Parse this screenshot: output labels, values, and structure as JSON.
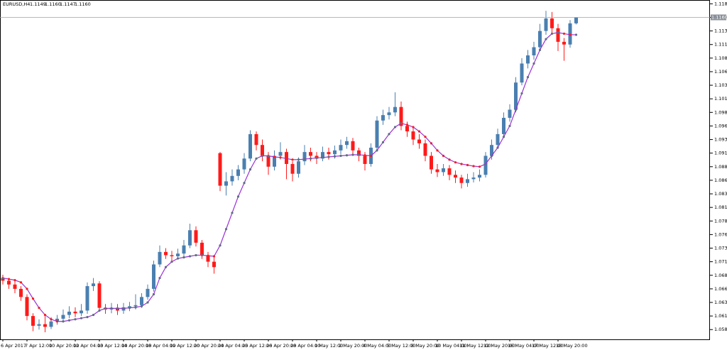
{
  "chart_data": {
    "type": "candlestick",
    "title": "EURUSD,H4",
    "header_values": [
      "1.1149",
      "1.1160",
      "1.1147",
      "1.1160"
    ],
    "current_price_label": "1.1160",
    "up_color": "#4a7fb0",
    "down_color": "#ff1a1a",
    "categories": [
      "6 Apr 2017",
      null,
      null,
      null,
      "7 Apr 12:00",
      null,
      null,
      null,
      "10 Apr 20:00",
      null,
      null,
      null,
      "12 Apr 04:00",
      null,
      null,
      null,
      "13 Apr 12:00",
      null,
      null,
      null,
      "14 Apr 20:00",
      null,
      null,
      null,
      "18 Apr 04:00",
      null,
      null,
      null,
      "19 Apr 12:00",
      null,
      null,
      null,
      "20 Apr 20:00",
      null,
      null,
      null,
      "24 Apr 04:00",
      null,
      null,
      null,
      "25 Apr 12:00",
      null,
      null,
      null,
      "26 Apr 20:00",
      null,
      null,
      null,
      "28 Apr 04:00",
      null,
      null,
      null,
      "1 May 12:00",
      null,
      null,
      null,
      "2 May 20:00",
      null,
      null,
      null,
      "4 May 04:00",
      null,
      null,
      null,
      "5 May 12:00",
      null,
      null,
      null,
      "8 May 20:00",
      null,
      null,
      null,
      "10 May 04:00",
      null,
      null,
      null,
      "11 May 12:00",
      null,
      null,
      null,
      "12 May 20:00",
      null,
      null,
      null,
      "16 May 04:00",
      null,
      null,
      null,
      "17 May 12:00",
      null,
      null,
      null,
      "18 May 20:00",
      null,
      null,
      null
    ],
    "open": [
      1.068,
      1.0675,
      1.0668,
      1.066,
      1.0645,
      1.061,
      1.0592,
      1.0595,
      1.059,
      1.06,
      1.0605,
      1.0612,
      1.0618,
      1.0615,
      1.062,
      1.0665,
      1.067,
      1.0625,
      1.0622,
      1.0625,
      1.062,
      1.0626,
      1.0628,
      1.063,
      1.0645,
      1.066,
      1.0705,
      1.0728,
      1.0722,
      1.072,
      1.0725,
      1.074,
      1.0768,
      1.0745,
      1.0722,
      1.071,
      1.091,
      1.085,
      1.0858,
      1.0868,
      1.088,
      1.09,
      1.0945,
      1.0925,
      1.0905,
      1.0885,
      1.0905,
      1.0912,
      1.089,
      1.0872,
      1.0895,
      1.0912,
      1.0905,
      1.09,
      1.0912,
      1.0908,
      1.0915,
      1.0925,
      1.0932,
      1.0915,
      1.0905,
      1.089,
      1.092,
      1.097,
      1.098,
      1.0985,
      1.0995,
      1.096,
      1.095,
      1.0935,
      1.0928,
      1.0905,
      1.088,
      1.0875,
      1.0882,
      1.087,
      1.0865,
      1.0855,
      1.0862,
      1.0865,
      1.087,
      1.0905,
      1.0925,
      1.0945,
      1.0975,
      1.099,
      1.104,
      1.1075,
      1.109,
      1.1105,
      1.1135,
      1.1158,
      1.114,
      1.1115,
      1.111,
      1.1149
    ],
    "high": [
      1.0686,
      1.068,
      1.0674,
      1.0665,
      1.065,
      1.0615,
      1.0604,
      1.061,
      1.0608,
      1.0612,
      1.0622,
      1.0628,
      1.0626,
      1.0632,
      1.0672,
      1.068,
      1.0674,
      1.0632,
      1.0634,
      1.0632,
      1.0634,
      1.0636,
      1.065,
      1.0652,
      1.0668,
      1.0712,
      1.074,
      1.0735,
      1.073,
      1.0734,
      1.075,
      1.078,
      1.0775,
      1.075,
      1.0728,
      1.072,
      1.0912,
      1.0875,
      1.088,
      1.0888,
      1.091,
      1.0952,
      1.095,
      1.0935,
      1.0912,
      1.0915,
      1.093,
      1.0918,
      1.0895,
      1.0902,
      1.0925,
      1.092,
      1.0912,
      1.0922,
      1.092,
      1.0924,
      1.0935,
      1.094,
      1.0938,
      1.092,
      1.0912,
      1.0928,
      1.0978,
      1.099,
      1.0995,
      1.1022,
      1.1005,
      1.0968,
      1.0958,
      1.0945,
      1.0935,
      1.0912,
      1.089,
      1.089,
      1.0888,
      1.0878,
      1.087,
      1.0872,
      1.0875,
      1.088,
      1.0912,
      1.0935,
      1.0955,
      1.0985,
      1.1,
      1.105,
      1.1085,
      1.11,
      1.1115,
      1.1148,
      1.1172,
      1.117,
      1.1148,
      1.1122,
      1.1155,
      1.116
    ],
    "low": [
      1.0668,
      1.066,
      1.0652,
      1.0638,
      1.0602,
      1.0582,
      1.0585,
      1.058,
      1.0586,
      1.0594,
      1.06,
      1.0606,
      1.0608,
      1.061,
      1.0614,
      1.0656,
      1.0618,
      1.0614,
      1.0615,
      1.0612,
      1.0614,
      1.0619,
      1.0622,
      1.0625,
      1.064,
      1.0655,
      1.07,
      1.0715,
      1.0712,
      1.0714,
      1.0718,
      1.0735,
      1.0738,
      1.0715,
      1.07,
      1.0688,
      1.084,
      1.0832,
      1.085,
      1.086,
      1.0872,
      1.0895,
      1.0915,
      1.0895,
      1.087,
      1.0878,
      1.0898,
      1.0862,
      1.0858,
      1.0865,
      1.0888,
      1.0895,
      1.089,
      1.0895,
      1.0898,
      1.09,
      1.0908,
      1.0918,
      1.0908,
      1.0895,
      1.0878,
      1.0885,
      1.0915,
      1.0962,
      1.0972,
      1.0978,
      1.0952,
      1.094,
      1.0925,
      1.0918,
      1.0895,
      1.0872,
      1.0866,
      1.0868,
      1.086,
      1.0855,
      1.0845,
      1.0848,
      1.0856,
      1.0858,
      1.0865,
      1.0898,
      1.0918,
      1.094,
      1.0968,
      1.0985,
      1.1035,
      1.1066,
      1.1082,
      1.1098,
      1.1128,
      1.113,
      1.1098,
      1.108,
      1.1104,
      1.1147
    ],
    "close": [
      1.0675,
      1.0668,
      1.066,
      1.0645,
      1.061,
      1.0592,
      1.0595,
      1.059,
      1.06,
      1.0605,
      1.0612,
      1.0618,
      1.0615,
      1.062,
      1.0665,
      1.067,
      1.0625,
      1.0622,
      1.0625,
      1.062,
      1.0626,
      1.0628,
      1.063,
      1.0645,
      1.066,
      1.0705,
      1.0728,
      1.0722,
      1.072,
      1.0725,
      1.074,
      1.0768,
      1.0745,
      1.0722,
      1.071,
      1.07,
      1.085,
      1.0858,
      1.0868,
      1.088,
      1.09,
      1.0945,
      1.0925,
      1.0905,
      1.0885,
      1.0905,
      1.0912,
      1.089,
      1.0872,
      1.0895,
      1.0912,
      1.0905,
      1.09,
      1.0912,
      1.0908,
      1.0915,
      1.0925,
      1.0932,
      1.0915,
      1.0905,
      1.089,
      1.092,
      1.097,
      1.098,
      1.0985,
      1.0995,
      1.096,
      1.095,
      1.0935,
      1.0928,
      1.0905,
      1.088,
      1.0875,
      1.0882,
      1.087,
      1.0865,
      1.0855,
      1.0862,
      1.0865,
      1.087,
      1.0905,
      1.0925,
      1.0945,
      1.0975,
      1.099,
      1.104,
      1.1075,
      1.109,
      1.1105,
      1.1135,
      1.1158,
      1.114,
      1.1115,
      1.111,
      1.1149,
      1.116
    ],
    "ma": {
      "color": "#9b30d9",
      "values": [
        1.068,
        1.0678,
        1.0676,
        1.0672,
        1.066,
        1.0642,
        1.0625,
        1.0612,
        1.0604,
        1.06,
        1.06,
        1.0602,
        1.0604,
        1.0606,
        1.0608,
        1.0612,
        1.062,
        1.0624,
        1.0624,
        1.0624,
        1.0624,
        1.0625,
        1.0626,
        1.0628,
        1.0635,
        1.065,
        1.068,
        1.07,
        1.071,
        1.0716,
        1.0718,
        1.072,
        1.0722,
        1.0722,
        1.0721,
        1.072,
        1.074,
        1.077,
        1.08,
        1.083,
        1.0855,
        1.088,
        1.09,
        1.0905,
        1.0905,
        1.0903,
        1.0902,
        1.09,
        1.0898,
        1.0898,
        1.0899,
        1.09,
        1.0901,
        1.0902,
        1.0903,
        1.0904,
        1.0905,
        1.0906,
        1.0907,
        1.0907,
        1.0906,
        1.0905,
        1.0915,
        1.093,
        1.0945,
        1.0958,
        1.0965,
        1.0962,
        1.0958,
        1.095,
        1.094,
        1.0928,
        1.0915,
        1.0905,
        1.0898,
        1.0893,
        1.089,
        1.0888,
        1.0886,
        1.0885,
        1.089,
        1.0905,
        1.092,
        1.094,
        1.096,
        1.099,
        1.102,
        1.105,
        1.1075,
        1.11,
        1.112,
        1.113,
        1.1132,
        1.113,
        1.1128,
        1.1128
      ]
    },
    "ylim": [
      1.0567,
      1.1192
    ],
    "yticks": [
      1.0585,
      {
        "value": 1.061,
        "label": "1.0610"
      },
      1.0635,
      {
        "value": 1.066,
        "label": "1.0660"
      },
      1.0685,
      {
        "value": 1.071,
        "label": "1.0710"
      },
      1.0735,
      {
        "value": 1.076,
        "label": "1.0760"
      },
      1.0785,
      {
        "value": 1.081,
        "label": "1.0810"
      },
      1.0835,
      {
        "value": 1.086,
        "label": "1.0860"
      },
      1.0885,
      {
        "value": 1.091,
        "label": "1.0910"
      },
      1.0935,
      {
        "value": 1.096,
        "label": "1.0960"
      },
      1.0985,
      {
        "value": 1.101,
        "label": "1.1010"
      },
      1.1035,
      {
        "value": 1.106,
        "label": "1.1060"
      },
      1.1085,
      {
        "value": 1.111,
        "label": "1.1110"
      },
      1.1135,
      {
        "value": 1.116,
        "label": "1.1160"
      },
      1.1185
    ]
  }
}
